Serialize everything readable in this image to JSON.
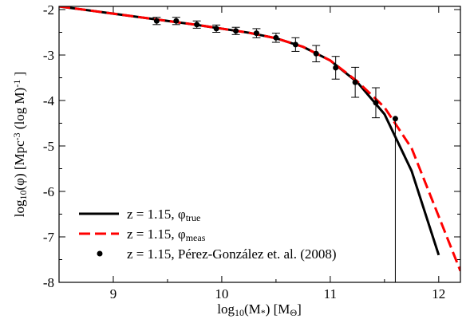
{
  "chart_data": {
    "type": "line",
    "xlabel": [
      {
        "text": "log"
      },
      {
        "text": "10",
        "shift": "sub"
      },
      {
        "text": "(M"
      },
      {
        "text": "*",
        "shift": "sub"
      },
      {
        "text": ") [M"
      },
      {
        "text": "Θ",
        "shift": "sub"
      },
      {
        "text": "]"
      }
    ],
    "ylabel": [
      {
        "text": "log"
      },
      {
        "text": "10",
        "shift": "sub"
      },
      {
        "text": "(φ) [Mpc"
      },
      {
        "text": "-3",
        "shift": "sup"
      },
      {
        "text": " (log M)"
      },
      {
        "text": "-1",
        "shift": "sup"
      },
      {
        "text": " ]"
      }
    ],
    "xlim": [
      8.5,
      12.2
    ],
    "ylim": [
      -8,
      -1.93
    ],
    "xticks": [
      9,
      10,
      11,
      12
    ],
    "yticks": [
      -8,
      -7,
      -6,
      -5,
      -4,
      -3,
      -2
    ],
    "xminorticks": [
      8.5,
      9.5,
      10.5,
      11.5
    ],
    "yminorticks": [
      -7.5,
      -6.5,
      -5.5,
      -4.5,
      -3.5,
      -2.5
    ],
    "legend": "lower left",
    "series": [
      {
        "name": "z = 1.15, φ",
        "name_subscript": "true",
        "color": "#000000",
        "style": "solid",
        "x": [
          8.5,
          8.75,
          9,
          9.25,
          9.5,
          9.75,
          10,
          10.25,
          10.5,
          10.75,
          11,
          11.25,
          11.5,
          11.75,
          12
        ],
        "values": [
          -1.93,
          -2.01,
          -2.09,
          -2.17,
          -2.25,
          -2.33,
          -2.42,
          -2.51,
          -2.63,
          -2.82,
          -3.12,
          -3.6,
          -4.3,
          -5.55,
          -7.4
        ]
      },
      {
        "name": "z = 1.15, φ",
        "name_subscript": "meas",
        "color": "#ff0000",
        "style": "dashed",
        "x": [
          8.5,
          8.75,
          9,
          9.25,
          9.5,
          9.75,
          10,
          10.25,
          10.5,
          10.75,
          11,
          11.25,
          11.5,
          11.75,
          12,
          12.2
        ],
        "values": [
          -1.93,
          -2.01,
          -2.09,
          -2.17,
          -2.25,
          -2.33,
          -2.42,
          -2.51,
          -2.63,
          -2.82,
          -3.12,
          -3.58,
          -4.15,
          -5.05,
          -6.55,
          -7.75
        ]
      },
      {
        "name": "z = 1.15, Pérez-González et. al. (2008)",
        "color": "#000000",
        "style": "points",
        "x": [
          9.4,
          9.58,
          9.77,
          9.95,
          10.13,
          10.32,
          10.5,
          10.68,
          10.87,
          11.05,
          11.23,
          11.42,
          11.6
        ],
        "values": [
          -2.25,
          -2.25,
          -2.33,
          -2.42,
          -2.47,
          -2.52,
          -2.62,
          -2.77,
          -2.97,
          -3.28,
          -3.6,
          -4.05,
          -4.4
        ],
        "err_low": [
          0.08,
          0.08,
          0.08,
          0.08,
          0.08,
          0.1,
          0.1,
          0.15,
          0.18,
          0.25,
          0.33,
          0.33,
          3.6
        ],
        "err_high": [
          0.08,
          0.08,
          0.08,
          0.08,
          0.08,
          0.1,
          0.1,
          0.15,
          0.18,
          0.25,
          0.33,
          0.33,
          0
        ]
      }
    ]
  }
}
